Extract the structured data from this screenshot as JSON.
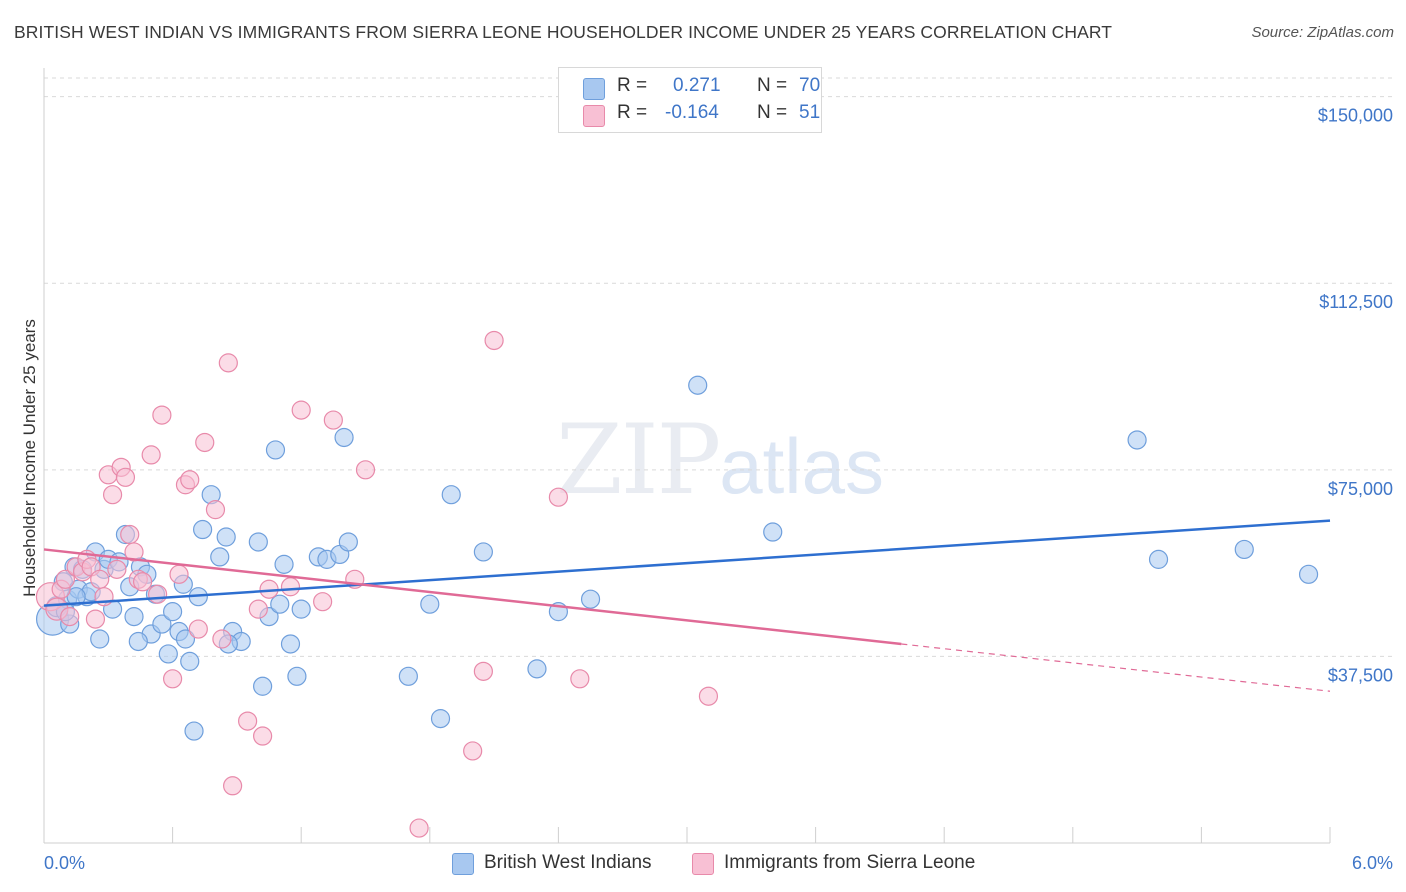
{
  "title": "BRITISH WEST INDIAN VS IMMIGRANTS FROM SIERRA LEONE HOUSEHOLDER INCOME UNDER 25 YEARS CORRELATION CHART",
  "source": "Source: ZipAtlas.com",
  "watermark": {
    "zip": "ZIP",
    "atlas": "atlas"
  },
  "legend": {
    "rows": [
      {
        "r_label": "R =",
        "r_value": "0.271",
        "n_label": "N =",
        "n_value": "70",
        "color": "#a8c8f0",
        "border": "#6f9fdc"
      },
      {
        "r_label": "R =",
        "r_value": "-0.164",
        "n_label": "N =",
        "n_value": "51",
        "color": "#f8c0d4",
        "border": "#e88aaa"
      }
    ]
  },
  "bottom_legend": [
    {
      "label": "British West Indians",
      "color": "#a8c8f0",
      "border": "#6f9fdc"
    },
    {
      "label": "Immigrants from Sierra Leone",
      "color": "#f8c0d4",
      "border": "#e88aaa"
    }
  ],
  "chart_data": {
    "type": "scatter",
    "title": "BRITISH WEST INDIAN VS IMMIGRANTS FROM SIERRA LEONE HOUSEHOLDER INCOME UNDER 25 YEARS CORRELATION CHART",
    "xlabel": "",
    "ylabel": "Householder Income Under 25 years",
    "xlim": [
      0,
      6
    ],
    "ylim": [
      0,
      153750
    ],
    "x_tick_labels": [
      "0.0%",
      "6.0%"
    ],
    "y_ticks": [
      37500,
      75000,
      112500,
      150000
    ],
    "y_tick_labels": [
      "$37,500",
      "$75,000",
      "$112,500",
      "$150,000"
    ],
    "grid": "horizontal dashed",
    "legend_placement": "top-center",
    "series": [
      {
        "name": "British West Indians",
        "color": "#6f9fdc",
        "fill": "#a8c8f0",
        "r": 0.271,
        "n": 70,
        "trend": {
          "x": [
            0,
            6
          ],
          "y": [
            47700,
            64800
          ],
          "style": "solid",
          "color": "#2e6fd0"
        },
        "points": [
          [
            0.04,
            45000,
            16
          ],
          [
            0.06,
            47500,
            10
          ],
          [
            0.09,
            52500,
            9
          ],
          [
            0.11,
            49000,
            9
          ],
          [
            0.12,
            44000,
            9
          ],
          [
            0.14,
            55500,
            9
          ],
          [
            0.16,
            51000,
            9
          ],
          [
            0.18,
            55000,
            9
          ],
          [
            0.2,
            49500,
            9
          ],
          [
            0.22,
            50500,
            9
          ],
          [
            0.24,
            58500,
            9
          ],
          [
            0.26,
            41000,
            9
          ],
          [
            0.28,
            55000,
            9
          ],
          [
            0.3,
            57000,
            9
          ],
          [
            0.32,
            47000,
            9
          ],
          [
            0.35,
            56500,
            9
          ],
          [
            0.38,
            62000,
            9
          ],
          [
            0.4,
            51500,
            9
          ],
          [
            0.42,
            45500,
            9
          ],
          [
            0.45,
            55500,
            9
          ],
          [
            0.48,
            54000,
            9
          ],
          [
            0.5,
            42000,
            9
          ],
          [
            0.52,
            50000,
            9
          ],
          [
            0.55,
            44000,
            9
          ],
          [
            0.58,
            38000,
            9
          ],
          [
            0.6,
            46500,
            9
          ],
          [
            0.63,
            42500,
            9
          ],
          [
            0.65,
            52000,
            9
          ],
          [
            0.68,
            36500,
            9
          ],
          [
            0.7,
            22500,
            9
          ],
          [
            0.72,
            49500,
            9
          ],
          [
            0.74,
            63000,
            9
          ],
          [
            0.78,
            70000,
            9
          ],
          [
            0.82,
            57500,
            9
          ],
          [
            0.85,
            61500,
            9
          ],
          [
            0.88,
            42500,
            9
          ],
          [
            0.92,
            40500,
            9
          ],
          [
            1.0,
            60500,
            9
          ],
          [
            1.02,
            31500,
            9
          ],
          [
            1.05,
            45500,
            9
          ],
          [
            1.08,
            79000,
            9
          ],
          [
            1.12,
            56000,
            9
          ],
          [
            1.15,
            40000,
            9
          ],
          [
            1.18,
            33500,
            9
          ],
          [
            1.2,
            47000,
            9
          ],
          [
            1.28,
            57500,
            9
          ],
          [
            1.32,
            57000,
            9
          ],
          [
            1.38,
            58000,
            9
          ],
          [
            1.4,
            81500,
            9
          ],
          [
            1.42,
            60500,
            9
          ],
          [
            1.7,
            33500,
            9
          ],
          [
            1.8,
            48000,
            9
          ],
          [
            1.85,
            25000,
            9
          ],
          [
            1.9,
            70000,
            9
          ],
          [
            2.05,
            58500,
            9
          ],
          [
            2.3,
            35000,
            9
          ],
          [
            2.4,
            46500,
            9
          ],
          [
            2.55,
            49000,
            9
          ],
          [
            3.05,
            92000,
            9
          ],
          [
            3.4,
            62500,
            9
          ],
          [
            5.1,
            81000,
            9
          ],
          [
            5.2,
            57000,
            9
          ],
          [
            5.6,
            59000,
            9
          ],
          [
            5.9,
            54000,
            9
          ],
          [
            0.1,
            46500,
            9
          ],
          [
            0.15,
            49500,
            9
          ],
          [
            0.66,
            41000,
            9
          ],
          [
            0.86,
            40000,
            9
          ],
          [
            1.1,
            48000,
            9
          ],
          [
            0.44,
            40500,
            9
          ]
        ]
      },
      {
        "name": "Immigrants from Sierra Leone",
        "color": "#e88aaa",
        "fill": "#f8c0d4",
        "r": -0.164,
        "n": 51,
        "trend": {
          "x": [
            0,
            4.0
          ],
          "y": [
            59000,
            40000
          ],
          "x_dashed_end": 6,
          "y_dashed_end": 30500,
          "style": "solid-then-dashed",
          "color": "#e06a96"
        },
        "points": [
          [
            0.03,
            49500,
            14
          ],
          [
            0.06,
            47000,
            11
          ],
          [
            0.08,
            51000,
            9
          ],
          [
            0.1,
            53000,
            9
          ],
          [
            0.12,
            45500,
            9
          ],
          [
            0.15,
            55500,
            9
          ],
          [
            0.18,
            54500,
            9
          ],
          [
            0.2,
            57000,
            9
          ],
          [
            0.22,
            55500,
            9
          ],
          [
            0.24,
            45000,
            9
          ],
          [
            0.26,
            53000,
            9
          ],
          [
            0.28,
            49500,
            9
          ],
          [
            0.3,
            74000,
            9
          ],
          [
            0.32,
            70000,
            9
          ],
          [
            0.34,
            55000,
            9
          ],
          [
            0.36,
            75500,
            9
          ],
          [
            0.38,
            73500,
            9
          ],
          [
            0.4,
            62000,
            9
          ],
          [
            0.42,
            58500,
            9
          ],
          [
            0.44,
            53000,
            9
          ],
          [
            0.46,
            52500,
            9
          ],
          [
            0.5,
            78000,
            9
          ],
          [
            0.53,
            50000,
            9
          ],
          [
            0.55,
            86000,
            9
          ],
          [
            0.6,
            33000,
            9
          ],
          [
            0.63,
            54000,
            9
          ],
          [
            0.66,
            72000,
            9
          ],
          [
            0.68,
            73000,
            9
          ],
          [
            0.72,
            43000,
            9
          ],
          [
            0.75,
            80500,
            9
          ],
          [
            0.8,
            67000,
            9
          ],
          [
            0.83,
            41000,
            9
          ],
          [
            0.86,
            96500,
            9
          ],
          [
            0.88,
            11500,
            9
          ],
          [
            0.95,
            24500,
            9
          ],
          [
            1.0,
            47000,
            9
          ],
          [
            1.02,
            21500,
            9
          ],
          [
            1.05,
            51000,
            9
          ],
          [
            1.15,
            51500,
            9
          ],
          [
            1.2,
            87000,
            9
          ],
          [
            1.3,
            48500,
            9
          ],
          [
            1.35,
            85000,
            9
          ],
          [
            1.45,
            53000,
            9
          ],
          [
            1.5,
            75000,
            9
          ],
          [
            1.75,
            3000,
            9
          ],
          [
            2.0,
            18500,
            9
          ],
          [
            2.05,
            34500,
            9
          ],
          [
            2.1,
            101000,
            9
          ],
          [
            2.4,
            69500,
            9
          ],
          [
            2.5,
            33000,
            9
          ],
          [
            3.1,
            29500,
            9
          ]
        ]
      }
    ]
  }
}
